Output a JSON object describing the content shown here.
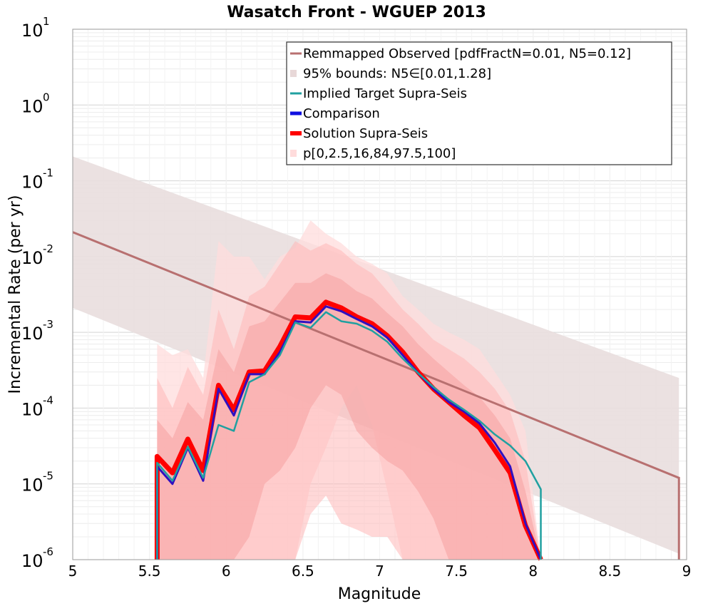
{
  "chart_data": {
    "type": "line",
    "title": "Wasatch Front - WGUEP 2013",
    "xlabel": "Magnitude",
    "ylabel": "Incremental Rate (per yr)",
    "xlim": [
      5,
      9
    ],
    "ylim_log10": [
      -6,
      1
    ],
    "x_ticks": [
      "5",
      "5.5",
      "6",
      "6.5",
      "7",
      "7.5",
      "8",
      "8.5",
      "9"
    ],
    "y_ticks": [
      {
        "base": "10",
        "exp": "-6"
      },
      {
        "base": "10",
        "exp": "-5"
      },
      {
        "base": "10",
        "exp": "-4"
      },
      {
        "base": "10",
        "exp": "-3"
      },
      {
        "base": "10",
        "exp": "-2"
      },
      {
        "base": "10",
        "exp": "-1"
      },
      {
        "base": "10",
        "exp": "0"
      },
      {
        "base": "10",
        "exp": "1"
      }
    ],
    "legend_position": "top-right",
    "legend": [
      {
        "label": "Remmapped Observed [pdfFractN=0.01, N5=0.12]",
        "kind": "line",
        "color": "#b87070"
      },
      {
        "label": "95% bounds: N5∈[0.01,1.28]",
        "kind": "band",
        "color": "#e8d8d8"
      },
      {
        "label": "Implied Target Supra-Seis",
        "kind": "line",
        "color": "#20a0a0"
      },
      {
        "label": "Comparison",
        "kind": "line",
        "color": "#1010e0"
      },
      {
        "label": "Solution Supra-Seis",
        "kind": "line",
        "color": "#ff0000"
      },
      {
        "label": "p[0,2.5,16,84,97.5,100]",
        "kind": "band",
        "color": "#ffdcdc"
      }
    ],
    "colors": {
      "observed": "#b87070",
      "bounds_fill": "#e9dede",
      "implied": "#20a0a0",
      "comparison": "#3010c0",
      "solution": "#ff0000",
      "p_outer": "#ffdcdc",
      "p_mid": "#ffb8b8",
      "p_inner": "#f5a0a0"
    },
    "series": [
      {
        "name": "Remmapped Observed",
        "x": [
          5.0,
          8.95
        ],
        "y": [
          0.021,
          1.2e-05
        ]
      },
      {
        "name": "95% bounds lower",
        "x": [
          5.0,
          8.95
        ],
        "y": [
          0.0021,
          1.2e-06
        ]
      },
      {
        "name": "95% bounds upper",
        "x": [
          5.0,
          8.95
        ],
        "y": [
          0.21,
          0.00025
        ]
      },
      {
        "name": "Implied Target Supra-Seis",
        "x": [
          5.55,
          5.65,
          5.75,
          5.85,
          5.95,
          6.05,
          6.15,
          6.25,
          6.35,
          6.45,
          6.55,
          6.65,
          6.75,
          6.85,
          6.95,
          7.05,
          7.15,
          7.25,
          7.35,
          7.45,
          7.55,
          7.65,
          7.75,
          7.85,
          7.95,
          8.05
        ],
        "y": [
          1.9e-05,
          1.1e-05,
          3.1e-05,
          1.2e-05,
          6e-05,
          5e-05,
          0.00022,
          0.00028,
          0.0005,
          0.00135,
          0.00115,
          0.00185,
          0.0014,
          0.0013,
          0.00105,
          0.00075,
          0.00045,
          0.00029,
          0.00019,
          0.00013,
          9.5e-05,
          6.8e-05,
          4.5e-05,
          3.2e-05,
          2e-05,
          8.5e-06
        ]
      },
      {
        "name": "Comparison",
        "x": [
          5.55,
          5.65,
          5.75,
          5.85,
          5.95,
          6.05,
          6.15,
          6.25,
          6.35,
          6.45,
          6.55,
          6.65,
          6.75,
          6.85,
          6.95,
          7.05,
          7.15,
          7.25,
          7.35,
          7.45,
          7.55,
          7.65,
          7.75,
          7.85,
          7.95,
          8.05
        ],
        "y": [
          1.7e-05,
          1e-05,
          3e-05,
          1.1e-05,
          0.00018,
          8e-05,
          0.00028,
          0.00028,
          0.00055,
          0.0014,
          0.00135,
          0.0022,
          0.0019,
          0.0015,
          0.0012,
          0.00085,
          0.0005,
          0.00029,
          0.00018,
          0.00012,
          9e-05,
          6.3e-05,
          3.5e-05,
          1.7e-05,
          3e-06,
          8e-07
        ]
      },
      {
        "name": "Solution Supra-Seis",
        "x": [
          5.55,
          5.65,
          5.75,
          5.85,
          5.95,
          6.05,
          6.15,
          6.25,
          6.35,
          6.45,
          6.55,
          6.65,
          6.75,
          6.85,
          6.95,
          7.05,
          7.15,
          7.25,
          7.35,
          7.45,
          7.55,
          7.65,
          7.75,
          7.85,
          7.95,
          8.05
        ],
        "y": [
          2.3e-05,
          1.4e-05,
          3.9e-05,
          1.5e-05,
          0.0002,
          9.5e-05,
          0.0003,
          0.00031,
          0.00065,
          0.0016,
          0.00155,
          0.0025,
          0.0021,
          0.0016,
          0.0013,
          0.0009,
          0.00055,
          0.0003,
          0.00018,
          0.00012,
          8e-05,
          5.5e-05,
          2.8e-05,
          1.4e-05,
          2.8e-06,
          8e-07
        ]
      }
    ],
    "percentile_bands": {
      "x": [
        5.55,
        5.65,
        5.75,
        5.85,
        5.95,
        6.05,
        6.15,
        6.25,
        6.35,
        6.45,
        6.55,
        6.65,
        6.75,
        6.85,
        6.95,
        7.05,
        7.15,
        7.25,
        7.35,
        7.45,
        7.55,
        7.65,
        7.75,
        7.85,
        7.95,
        8.05
      ],
      "p0": [
        1e-06,
        1e-06,
        1e-06,
        1e-06,
        1e-06,
        1e-06,
        1e-06,
        1e-06,
        1e-06,
        1e-06,
        1e-05,
        3e-05,
        0.0001,
        0.0002,
        6e-05,
        8e-06,
        1e-06,
        1e-06,
        1e-06,
        1e-06,
        1e-06,
        1e-06,
        1e-06,
        1e-06,
        1e-06,
        1e-06
      ],
      "p2.5": [
        1e-06,
        1e-06,
        1e-06,
        1e-06,
        1e-06,
        1e-06,
        1e-06,
        1e-06,
        1e-06,
        1e-06,
        4e-06,
        7e-06,
        3e-06,
        2.5e-06,
        2e-06,
        2e-06,
        1e-06,
        1e-06,
        1e-06,
        1e-06,
        1e-06,
        1e-06,
        1e-06,
        1e-06,
        1e-06,
        1e-06
      ],
      "p16": [
        1e-06,
        1e-06,
        1e-06,
        1e-06,
        1e-06,
        1e-06,
        2e-06,
        1e-05,
        1.5e-05,
        3e-05,
        0.0001,
        0.0002,
        0.00015,
        5e-05,
        3e-05,
        2e-05,
        1.5e-05,
        8e-06,
        3.5e-06,
        1e-06,
        1e-06,
        1e-06,
        1e-06,
        1e-06,
        1e-06,
        1e-06
      ],
      "p84": [
        7e-05,
        4e-05,
        0.00012,
        7e-05,
        0.0006,
        0.0003,
        0.0012,
        0.0014,
        0.0025,
        0.0045,
        0.0045,
        0.006,
        0.005,
        0.0035,
        0.0028,
        0.0018,
        0.0012,
        0.0007,
        0.00045,
        0.0003,
        0.0002,
        0.00014,
        8e-05,
        4e-05,
        8e-06,
        1e-06
      ],
      "p97.5": [
        0.00025,
        0.0001,
        0.00035,
        0.00015,
        0.002,
        0.0006,
        0.003,
        0.004,
        0.008,
        0.016,
        0.012,
        0.015,
        0.012,
        0.008,
        0.006,
        0.0035,
        0.002,
        0.0013,
        0.0008,
        0.0006,
        0.00045,
        0.0003,
        0.00018,
        9e-05,
        2e-05,
        1e-06
      ],
      "p100": [
        0.0007,
        0.0005,
        0.0006,
        0.00025,
        0.016,
        0.01,
        0.01,
        0.005,
        0.01,
        0.013,
        0.03,
        0.02,
        0.015,
        0.01,
        0.008,
        0.006,
        0.003,
        0.002,
        0.0013,
        0.001,
        0.0008,
        0.0006,
        0.0003,
        0.00015,
        5e-05,
        1e-06
      ]
    }
  }
}
